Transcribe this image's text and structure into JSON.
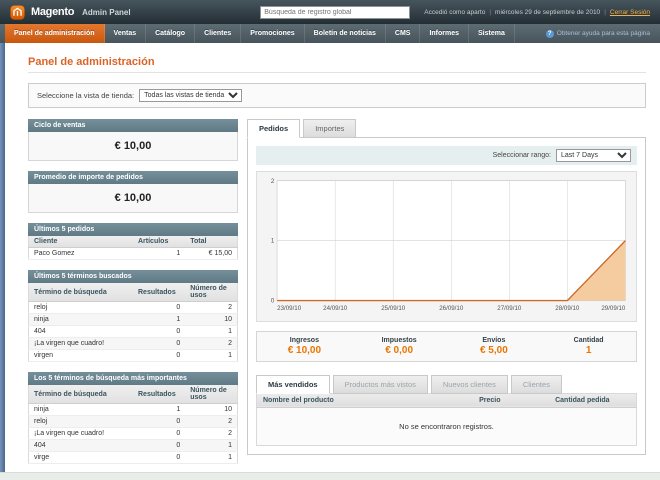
{
  "header": {
    "brand": "Magento",
    "brand_suffix": "Admin Panel",
    "search_placeholder": "Búsqueda de registro global",
    "logged_in_text": "Accedió como aparto",
    "date_text": "miércoles 29 de septiembre de 2010",
    "logout_label": "Cerrar Sesión"
  },
  "nav": {
    "items": [
      {
        "label": "Panel de administración",
        "active": true
      },
      {
        "label": "Ventas"
      },
      {
        "label": "Catálogo"
      },
      {
        "label": "Clientes"
      },
      {
        "label": "Promociones"
      },
      {
        "label": "Boletín de noticias"
      },
      {
        "label": "CMS"
      },
      {
        "label": "Informes"
      },
      {
        "label": "Sistema"
      }
    ],
    "help_label": "Obtener ayuda para esta página"
  },
  "page": {
    "title": "Panel de administración",
    "store_view_label": "Seleccione la vista de tienda:",
    "store_view_value": "Todas las vistas de tienda"
  },
  "left": {
    "lifetime": {
      "title": "Ciclo de ventas",
      "value": "€ 10,00"
    },
    "average": {
      "title": "Promedio de importe de pedidos",
      "value": "€ 10,00"
    },
    "last_orders": {
      "title": "Últimos 5 pedidos",
      "columns": [
        "Cliente",
        "Artículos",
        "Total"
      ],
      "rows": [
        [
          "Paco Gomez",
          "1",
          "€ 15,00"
        ]
      ]
    },
    "last_search": {
      "title": "Últimos 5 términos buscados",
      "columns": [
        "Término de búsqueda",
        "Resultados",
        "Número de usos"
      ],
      "rows": [
        [
          "reloj",
          "0",
          "2"
        ],
        [
          "ninja",
          "1",
          "10"
        ],
        [
          "404",
          "0",
          "1"
        ],
        [
          "¡La virgen que cuadro!",
          "0",
          "2"
        ],
        [
          "virgen",
          "0",
          "1"
        ]
      ]
    },
    "top_search": {
      "title": "Los 5 términos de búsqueda más importantes",
      "columns": [
        "Término de búsqueda",
        "Resultados",
        "Número de usos"
      ],
      "rows": [
        [
          "ninja",
          "1",
          "10"
        ],
        [
          "reloj",
          "0",
          "2"
        ],
        [
          "¡La virgen que cuadro!",
          "0",
          "2"
        ],
        [
          "404",
          "0",
          "1"
        ],
        [
          "virge",
          "0",
          "1"
        ]
      ]
    }
  },
  "dashboard": {
    "tabs": [
      "Pedidos",
      "Importes"
    ],
    "range_label": "Seleccionar rango:",
    "range_value": "Last 7 Days",
    "totals": [
      {
        "label": "Ingresos",
        "value": "€ 10,00"
      },
      {
        "label": "Impuestos",
        "value": "€ 0,00"
      },
      {
        "label": "Envíos",
        "value": "€ 5,00"
      },
      {
        "label": "Cantidad",
        "value": "1"
      }
    ],
    "grid_tabs": [
      {
        "label": "Más vendidos",
        "active": true
      },
      {
        "label": "Productos más vistos"
      },
      {
        "label": "Nuevos clientes"
      },
      {
        "label": "Clientes"
      }
    ],
    "grid_columns": [
      "Nombre del producto",
      "Precio",
      "Cantidad pedida"
    ],
    "grid_empty": "No se encontraron registros."
  },
  "chart_data": {
    "type": "area",
    "title": "Pedidos - Last 7 Days",
    "x": [
      "23/09/10",
      "24/09/10",
      "25/09/10",
      "26/09/10",
      "27/09/10",
      "28/09/10",
      "29/09/10"
    ],
    "series": [
      {
        "name": "Pedidos",
        "values": [
          0,
          0,
          0,
          0,
          0,
          0,
          1
        ]
      }
    ],
    "ylim": [
      0,
      2
    ],
    "yticks": [
      0,
      1,
      2
    ],
    "grid": true,
    "line_color": "#c96a28",
    "fill_color": "#f5cba0"
  },
  "colors": {
    "accent_orange": "#db6326",
    "nav_active": "#d6661d",
    "box_head": "#69828e",
    "stat_value": "#ea7601"
  }
}
